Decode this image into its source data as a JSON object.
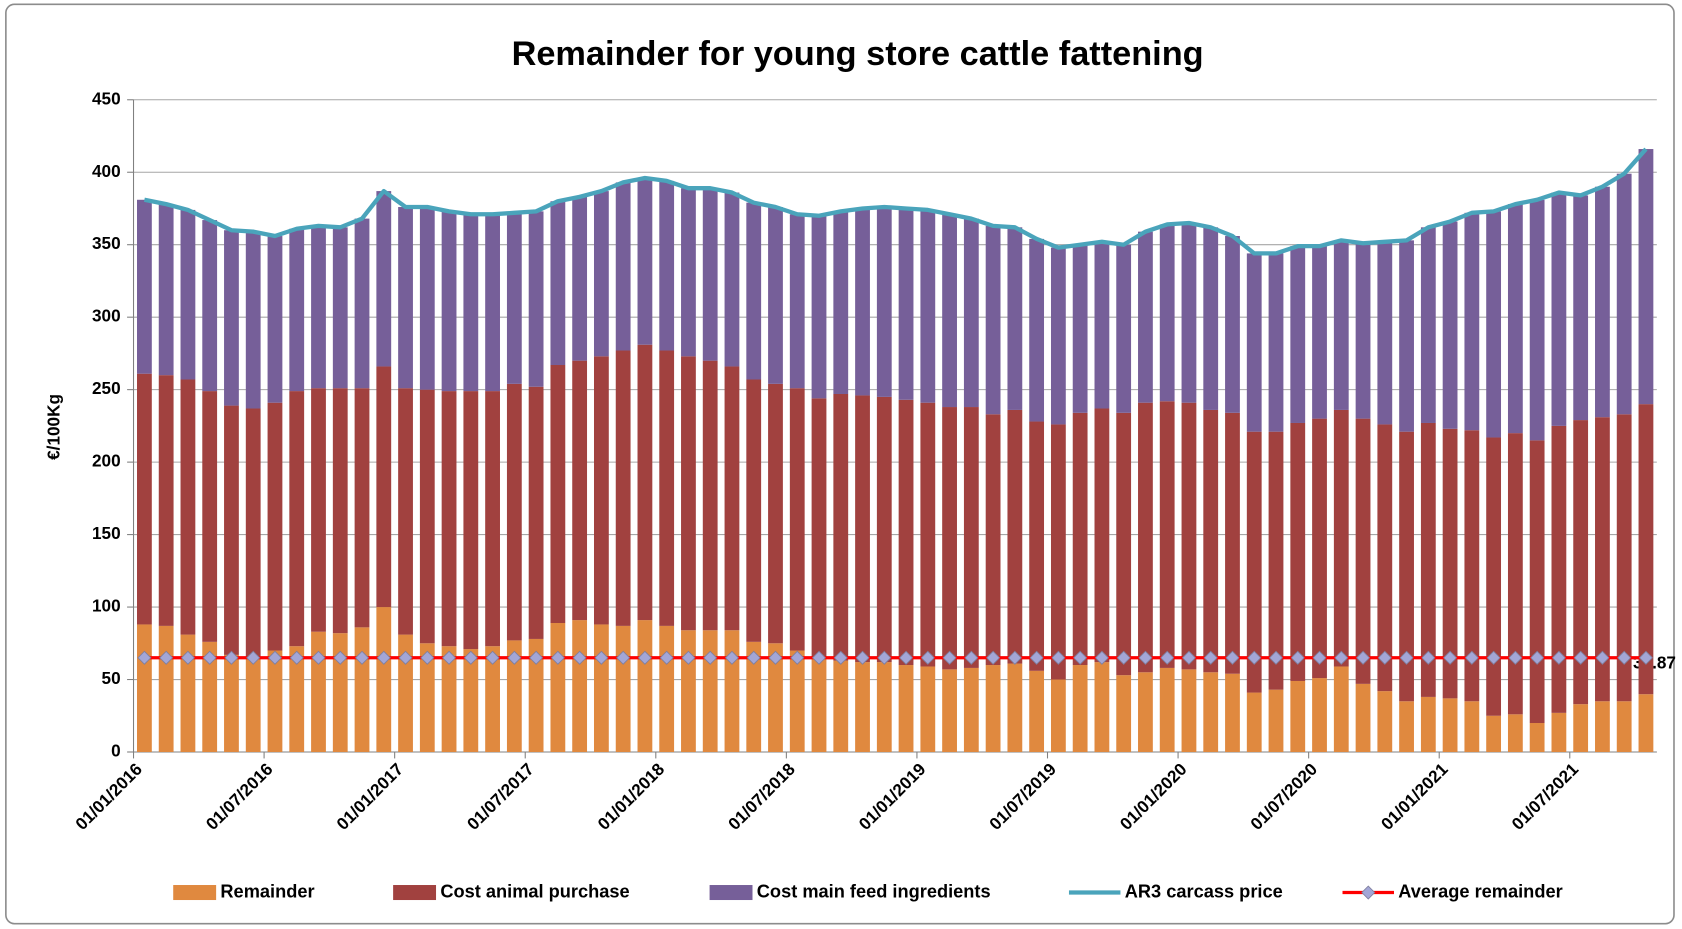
{
  "chart_data": {
    "type": "bar",
    "stacked": true,
    "title": "Remainder for young store cattle fattening",
    "y_label": "€/100Kg",
    "categories": [
      "01/01/2016",
      null,
      null,
      null,
      null,
      null,
      "01/07/2016",
      null,
      null,
      null,
      null,
      null,
      "01/01/2017",
      null,
      null,
      null,
      null,
      null,
      "01/07/2017",
      null,
      null,
      null,
      null,
      null,
      "01/01/2018",
      null,
      null,
      null,
      null,
      null,
      "01/07/2018",
      null,
      null,
      null,
      null,
      null,
      "01/01/2019",
      null,
      null,
      null,
      null,
      null,
      "01/07/2019",
      null,
      null,
      null,
      null,
      null,
      "01/01/2020",
      null,
      null,
      null,
      null,
      null,
      "01/07/2020",
      null,
      null,
      null,
      null,
      null,
      "01/01/2021",
      null,
      null,
      null,
      null,
      null,
      "01/07/2021",
      null,
      null,
      null
    ],
    "ylim": [
      0,
      450
    ],
    "yticks": [
      0,
      50,
      100,
      150,
      200,
      250,
      300,
      350,
      400,
      450
    ],
    "grid": true,
    "legend": "bottom",
    "series": [
      {
        "name": "Remainder",
        "type": "bar",
        "color": "#e0893f",
        "label_last": true,
        "values": [
          88,
          87,
          81,
          76,
          67,
          65,
          70,
          73,
          83,
          82,
          86,
          100,
          81,
          75,
          73,
          71,
          73,
          77,
          78,
          89,
          91,
          88,
          87,
          91,
          87,
          84,
          84,
          84,
          76,
          75,
          70,
          64,
          63,
          62,
          62,
          60,
          59,
          57,
          58,
          60,
          61,
          56,
          50,
          60,
          62,
          53,
          55,
          58,
          57,
          55,
          54,
          41,
          43,
          49,
          51,
          59,
          47,
          42,
          35,
          38,
          37,
          35,
          25,
          26,
          20,
          27,
          33,
          35,
          35,
          39.87
        ]
      },
      {
        "name": "Cost animal purchase",
        "type": "bar",
        "color": "#a1413f",
        "values": [
          173,
          173,
          176,
          173,
          172,
          172,
          171,
          176,
          168,
          169,
          165,
          166,
          170,
          175,
          176,
          178,
          176,
          177,
          174,
          178,
          179,
          185,
          190,
          190,
          190,
          189,
          186,
          182,
          181,
          179,
          181,
          180,
          184,
          184,
          183,
          183,
          182,
          181,
          180,
          173,
          175,
          172,
          176,
          174,
          175,
          181,
          186,
          184,
          184,
          181,
          180,
          180,
          178,
          178,
          179,
          177,
          183,
          184,
          186,
          189,
          186,
          187,
          192,
          194,
          195,
          198,
          196,
          196,
          198,
          200.13
        ]
      },
      {
        "name": "Cost main feed ingredients",
        "type": "bar",
        "color": "#765f99",
        "values": [
          120,
          118,
          117,
          118,
          121,
          122,
          115,
          112,
          112,
          111,
          117,
          121,
          125,
          126,
          124,
          122,
          122,
          118,
          121,
          113,
          113,
          114,
          116,
          115,
          117,
          116,
          119,
          120,
          122,
          122,
          120,
          126,
          126,
          129,
          131,
          132,
          133,
          133,
          130,
          130,
          126,
          126,
          122,
          116,
          115,
          116,
          118,
          122,
          124,
          126,
          122,
          123,
          123,
          122,
          119,
          117,
          121,
          126,
          132,
          135,
          143,
          150,
          156,
          158,
          166,
          161,
          155,
          159,
          166,
          176
        ]
      },
      {
        "name": "AR3 carcass price",
        "type": "line",
        "color": "#4aa4bb",
        "values": [
          381,
          378,
          374,
          367,
          360,
          359,
          356,
          361,
          363,
          362,
          368,
          387,
          376,
          376,
          373,
          371,
          371,
          372,
          373,
          380,
          383,
          387,
          393,
          396,
          394,
          389,
          389,
          386,
          379,
          376,
          371,
          370,
          373,
          375,
          376,
          375,
          374,
          371,
          368,
          363,
          362,
          354,
          348,
          350,
          352,
          350,
          359,
          364,
          365,
          362,
          356,
          344,
          344,
          349,
          349,
          353,
          351,
          352,
          353,
          362,
          366,
          372,
          373,
          378,
          381,
          386,
          384,
          390,
          399,
          416
        ]
      },
      {
        "name": "Average remainder",
        "type": "line",
        "color": "#ff0000",
        "marker": "diamond",
        "marker_color": "#a3a6d6",
        "values": [
          65,
          65,
          65,
          65,
          65,
          65,
          65,
          65,
          65,
          65,
          65,
          65,
          65,
          65,
          65,
          65,
          65,
          65,
          65,
          65,
          65,
          65,
          65,
          65,
          65,
          65,
          65,
          65,
          65,
          65,
          65,
          65,
          65,
          65,
          65,
          65,
          65,
          65,
          65,
          65,
          65,
          65,
          65,
          65,
          65,
          65,
          65,
          65,
          65,
          65,
          65,
          65,
          65,
          65,
          65,
          65,
          65,
          65,
          65,
          65,
          65,
          65,
          65,
          65,
          65,
          65,
          65,
          65,
          65,
          65
        ]
      }
    ]
  }
}
